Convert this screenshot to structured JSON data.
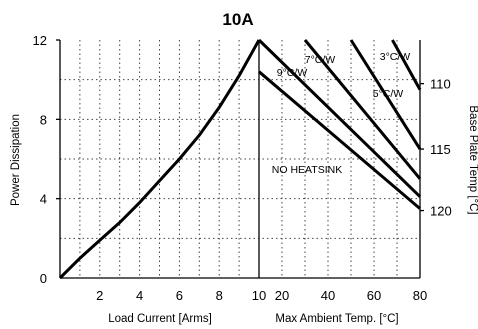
{
  "chart_data": [
    {
      "type": "line",
      "title": "10A",
      "xlabel": "Load Current  [Arms]",
      "ylabel": "Power Dissipation",
      "xlim": [
        0,
        10
      ],
      "ylim": [
        0,
        12
      ],
      "xticks": [
        "2",
        "4",
        "6",
        "8",
        "10"
      ],
      "yticks": [
        "0",
        "4",
        "8",
        "12"
      ],
      "grid": true,
      "series": [
        {
          "x": [
            0,
            1,
            2,
            3,
            4,
            5,
            6,
            7,
            8,
            9,
            10
          ],
          "y": [
            0,
            1.0,
            1.9,
            2.8,
            3.8,
            4.9,
            6.0,
            7.2,
            8.6,
            10.2,
            12.0
          ]
        }
      ]
    },
    {
      "type": "line",
      "xlabel": "Max Ambient Temp. [°C]",
      "ylabel2": "Base Plate Temp [°C]",
      "xlim": [
        10,
        80
      ],
      "xticks": [
        "20",
        "40",
        "60",
        "80"
      ],
      "y2ticks": [
        "110",
        "115",
        "120"
      ],
      "y2ticks_at_y": [
        9.8,
        6.5,
        3.4
      ],
      "grid": true,
      "annotation": "NO HEATSINK",
      "series": [
        {
          "name": "NO HEATSINK",
          "x": [
            10,
            80
          ],
          "y": [
            10.4,
            3.5
          ]
        },
        {
          "name": "9°C/W",
          "x": [
            10,
            80
          ],
          "y": [
            12.0,
            4.1
          ]
        },
        {
          "name": "7°C/W",
          "x": [
            30,
            80
          ],
          "y": [
            12.0,
            5.0
          ]
        },
        {
          "name": "5°C/W",
          "x": [
            50,
            80
          ],
          "y": [
            12.0,
            6.5
          ]
        },
        {
          "name": "3°C/W",
          "x": [
            68,
            80
          ],
          "y": [
            12.0,
            9.5
          ]
        }
      ],
      "series_labels": [
        "9°C/W",
        "7°C/W",
        "5°C/W",
        "3°C/W"
      ]
    }
  ]
}
